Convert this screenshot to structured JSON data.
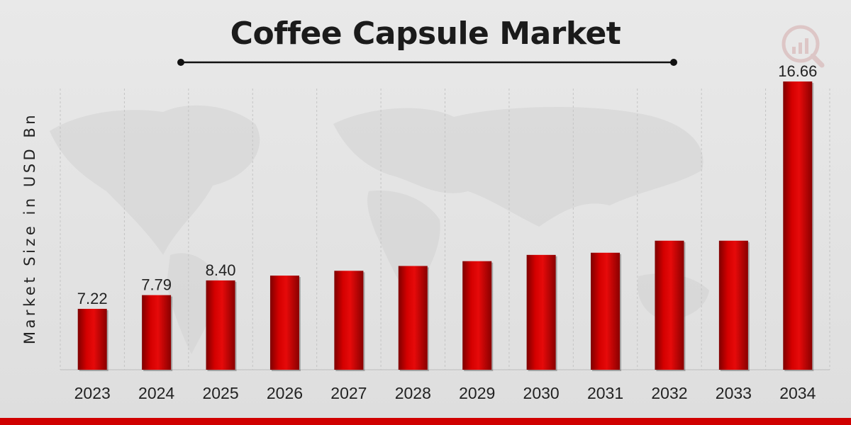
{
  "chart_data": {
    "type": "bar",
    "title": "Coffee Capsule Market",
    "xlabel": "",
    "ylabel": "Market Size in USD Bn",
    "categories": [
      "2023",
      "2024",
      "2025",
      "2026",
      "2027",
      "2028",
      "2029",
      "2030",
      "2031",
      "2032",
      "2033",
      "2034"
    ],
    "values": [
      7.22,
      7.79,
      8.4,
      8.6,
      8.8,
      9.0,
      9.2,
      9.46,
      9.55,
      10.05,
      10.05,
      16.66
    ],
    "data_labels": [
      "7.22",
      "7.79",
      "8.40",
      "",
      "",
      "",
      "",
      "",
      "",
      "",
      "",
      "16.66"
    ],
    "grid": "vertical",
    "legend": "none",
    "bar_color": "#cc0000"
  },
  "logo": {
    "icon": "brand-chart-logo-icon"
  }
}
